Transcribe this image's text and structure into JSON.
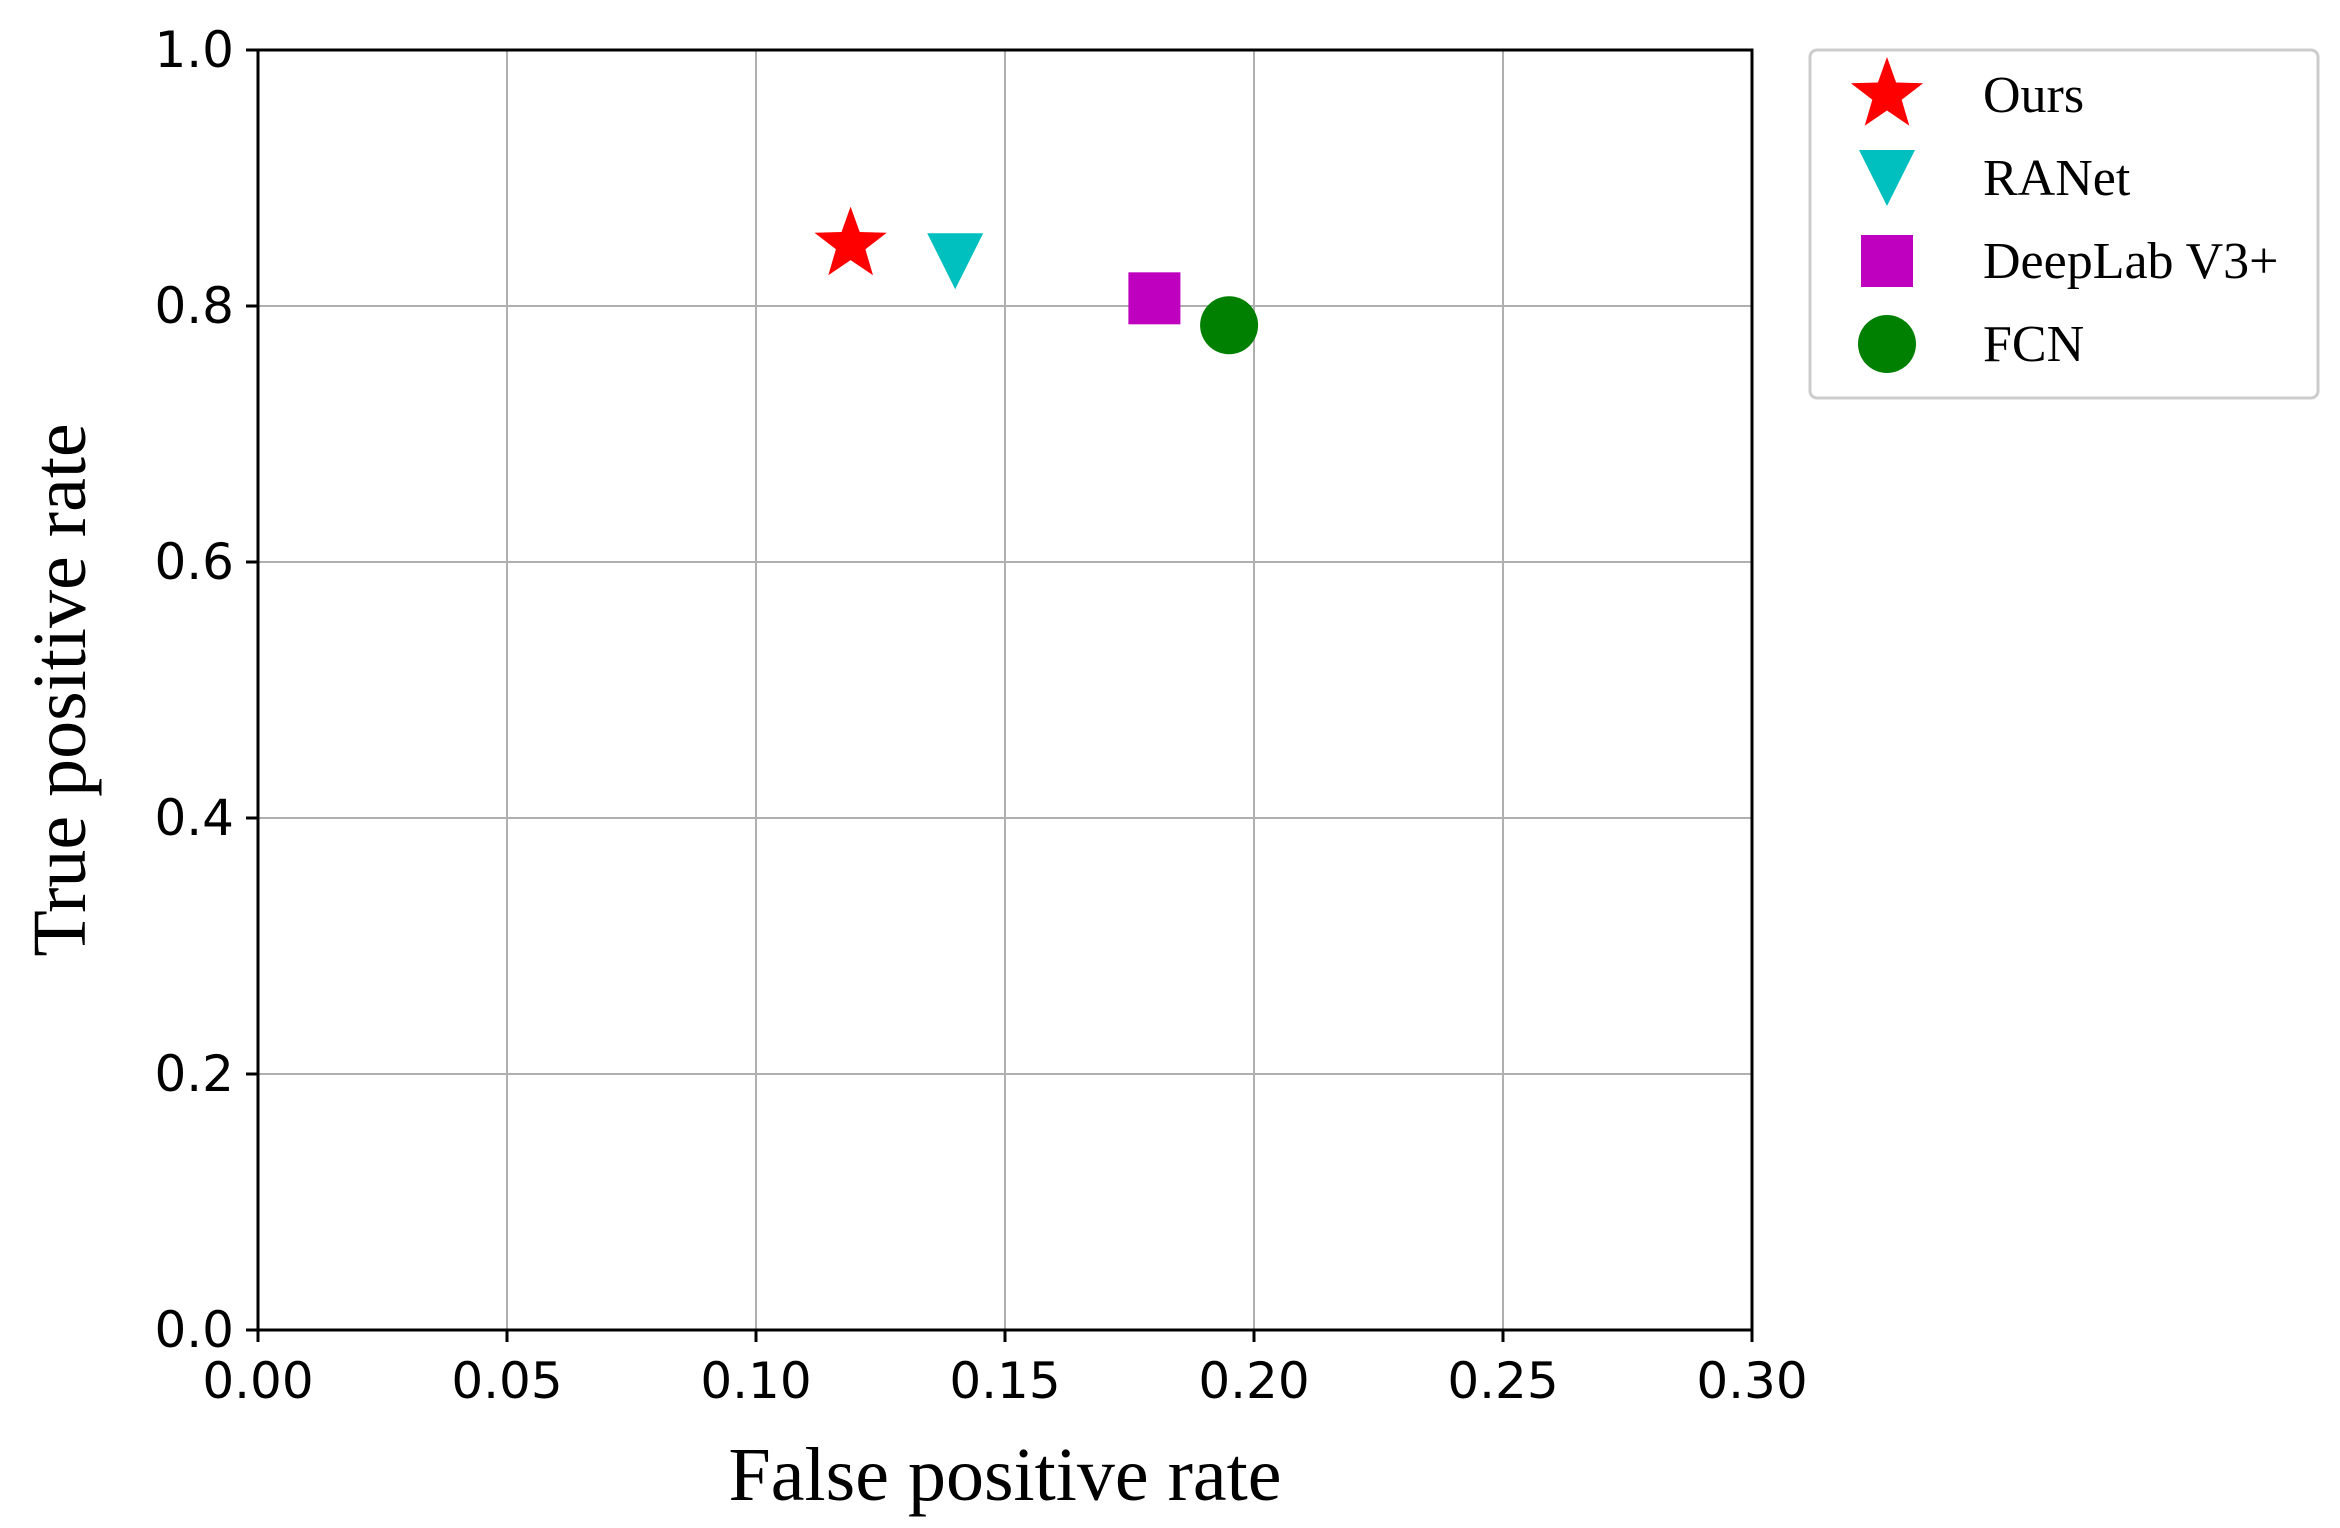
{
  "chart_data": {
    "type": "scatter",
    "title": "",
    "xlabel": "False positive rate",
    "ylabel": "True positive rate",
    "xlim": [
      0.0,
      0.3
    ],
    "ylim": [
      0.0,
      1.0
    ],
    "xticks": [
      "0.00",
      "0.05",
      "0.10",
      "0.15",
      "0.20",
      "0.25",
      "0.30"
    ],
    "yticks": [
      "0.0",
      "0.2",
      "0.4",
      "0.6",
      "0.8",
      "1.0"
    ],
    "grid": true,
    "legend_position": "outside-top-right",
    "series": [
      {
        "name": "Ours",
        "marker": "star",
        "color": "#ff0000",
        "x": 0.119,
        "y": 0.848
      },
      {
        "name": "RANet",
        "marker": "triangle-down",
        "color": "#00bfbf",
        "x": 0.14,
        "y": 0.835
      },
      {
        "name": "DeepLab V3+",
        "marker": "square",
        "color": "#bf00bf",
        "x": 0.18,
        "y": 0.806
      },
      {
        "name": "FCN",
        "marker": "circle",
        "color": "#008000",
        "x": 0.195,
        "y": 0.785
      }
    ]
  }
}
